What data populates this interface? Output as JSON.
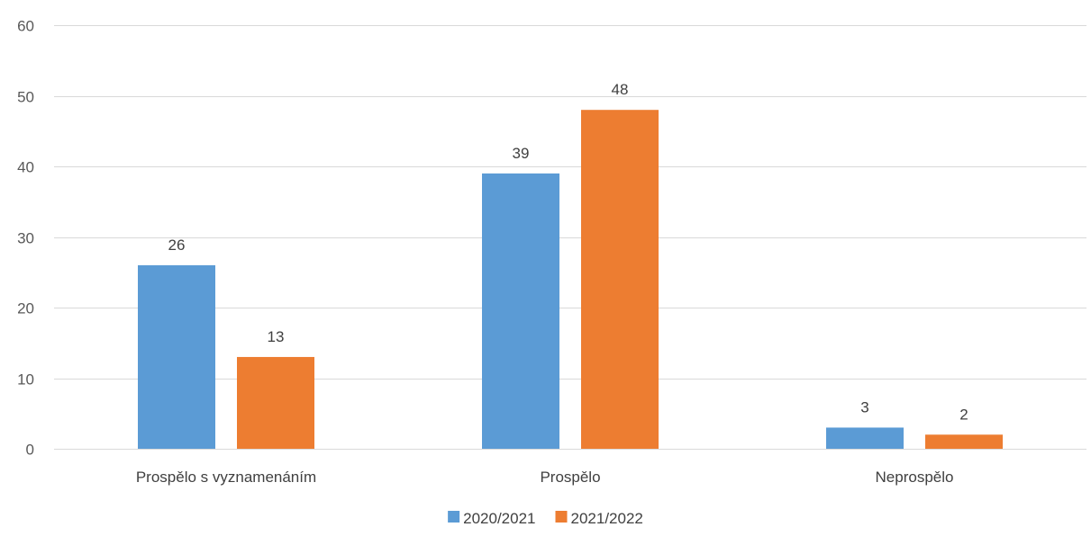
{
  "chart_data": {
    "type": "bar",
    "title": "",
    "xlabel": "",
    "ylabel": "",
    "categories": [
      "Prospělo s vyznamenáním",
      "Prospělo",
      "Neprospělo"
    ],
    "series": [
      {
        "name": "2020/2021",
        "values": [
          26,
          39,
          3
        ],
        "color": "#5B9BD5"
      },
      {
        "name": "2021/2022",
        "values": [
          13,
          48,
          2
        ],
        "color": "#ED7D31"
      }
    ],
    "ylim": [
      0,
      60
    ],
    "yticks": [
      0,
      10,
      20,
      30,
      40,
      50,
      60
    ],
    "grid": true,
    "data_labels": true,
    "legend_position": "bottom"
  }
}
